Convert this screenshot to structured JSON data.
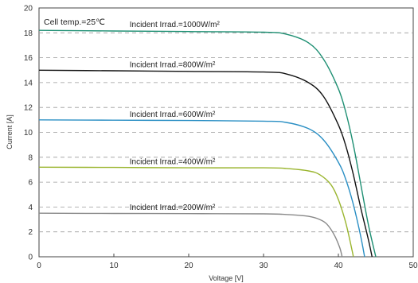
{
  "chart_data": {
    "type": "line",
    "title": "",
    "xlabel": "Voltage [V]",
    "ylabel": "Current [A]",
    "xlim": [
      0,
      50
    ],
    "ylim": [
      0,
      20
    ],
    "x_ticks": [
      "0",
      "10",
      "20",
      "30",
      "40",
      "50"
    ],
    "y_ticks": [
      "0",
      "2",
      "4",
      "6",
      "8",
      "10",
      "12",
      "14",
      "16",
      "18",
      "20"
    ],
    "grid": "horizontal dashed",
    "annotations": {
      "cell_temp": "Cell temp.=25℃"
    },
    "series": [
      {
        "name": "Incident Irrad.=1000W/m²",
        "color": "#1e8f73",
        "points": [
          [
            0,
            18.2
          ],
          [
            10,
            18.15
          ],
          [
            20,
            18.1
          ],
          [
            30,
            18.05
          ],
          [
            33,
            17.9
          ],
          [
            36,
            17.2
          ],
          [
            38,
            15.9
          ],
          [
            40,
            13.5
          ],
          [
            41,
            11.6
          ],
          [
            42,
            9.0
          ],
          [
            43,
            5.8
          ],
          [
            44,
            2.6
          ],
          [
            45,
            0
          ]
        ]
      },
      {
        "name": "Incident Irrad.=800W/m²",
        "color": "#111111",
        "points": [
          [
            0,
            15.0
          ],
          [
            10,
            14.95
          ],
          [
            20,
            14.9
          ],
          [
            30,
            14.85
          ],
          [
            33,
            14.7
          ],
          [
            36,
            14.0
          ],
          [
            38,
            12.9
          ],
          [
            40,
            10.6
          ],
          [
            41,
            8.9
          ],
          [
            42,
            6.6
          ],
          [
            43,
            3.9
          ],
          [
            44,
            1.4
          ],
          [
            44.5,
            0
          ]
        ]
      },
      {
        "name": "Incident Irrad.=600W/m²",
        "color": "#2a8fc4",
        "points": [
          [
            0,
            11.0
          ],
          [
            10,
            10.98
          ],
          [
            20,
            10.95
          ],
          [
            30,
            10.9
          ],
          [
            33,
            10.8
          ],
          [
            36,
            10.3
          ],
          [
            38,
            9.4
          ],
          [
            40,
            7.6
          ],
          [
            41,
            6.2
          ],
          [
            42,
            4.2
          ],
          [
            43,
            1.6
          ],
          [
            43.5,
            0
          ]
        ]
      },
      {
        "name": "Incident Irrad.=400W/m²",
        "color": "#9ab52e",
        "points": [
          [
            0,
            7.2
          ],
          [
            10,
            7.18
          ],
          [
            20,
            7.15
          ],
          [
            30,
            7.15
          ],
          [
            33,
            7.1
          ],
          [
            36,
            6.9
          ],
          [
            37.5,
            6.6
          ],
          [
            39,
            5.8
          ],
          [
            40,
            4.6
          ],
          [
            41,
            2.7
          ],
          [
            41.8,
            0.6
          ],
          [
            42,
            0
          ]
        ]
      },
      {
        "name": "Incident Irrad.=200W/m²",
        "color": "#888888",
        "points": [
          [
            0,
            3.5
          ],
          [
            10,
            3.48
          ],
          [
            20,
            3.47
          ],
          [
            30,
            3.45
          ],
          [
            33,
            3.4
          ],
          [
            36,
            3.25
          ],
          [
            37.5,
            3.0
          ],
          [
            38.5,
            2.6
          ],
          [
            39.5,
            1.7
          ],
          [
            40.2,
            0.7
          ],
          [
            40.5,
            0
          ]
        ]
      }
    ]
  }
}
